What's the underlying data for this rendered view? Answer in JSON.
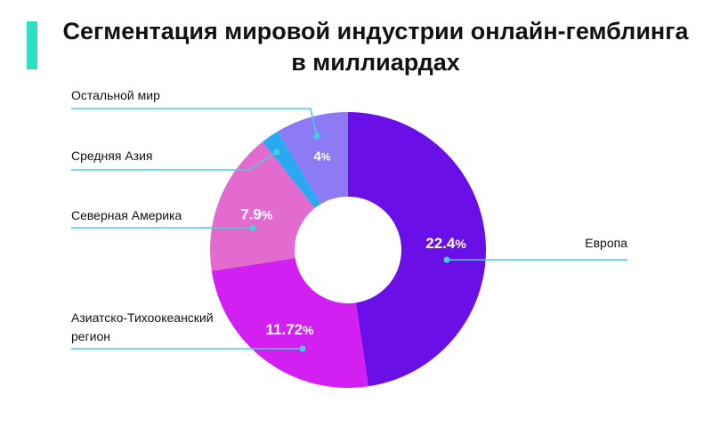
{
  "title": {
    "line1": "Сегментация мировой индустрии онлайн-гемблинга",
    "line2": "в миллиардах"
  },
  "accent_color": "#2fe0c0",
  "line_color": "#44cfe0",
  "chart_data": {
    "type": "pie",
    "variant": "donut",
    "title": "Сегментация мировой индустрии онлайн-гемблинга в миллиардах",
    "slices": [
      {
        "label": "Европа",
        "value": 22.4,
        "display": "22.4",
        "unit": "%",
        "color": "#6a0fe8"
      },
      {
        "label": "Азиатско-Тихоокеанский регион",
        "lines": [
          "Азиатско-Тихоокеанский",
          "регион"
        ],
        "value": 11.72,
        "display": "11.72",
        "unit": "%",
        "color": "#d21ff2"
      },
      {
        "label": "Северная Америка",
        "value": 7.9,
        "display": "7.9",
        "unit": "%",
        "color": "#e36bd0"
      },
      {
        "label": "Средняя Азия",
        "value": 1.0,
        "display": "",
        "unit": "",
        "color": "#28a9f0"
      },
      {
        "label": "Остальной мир",
        "value": 4,
        "display": "4",
        "unit": "%",
        "color": "#8c7bf5"
      }
    ]
  }
}
